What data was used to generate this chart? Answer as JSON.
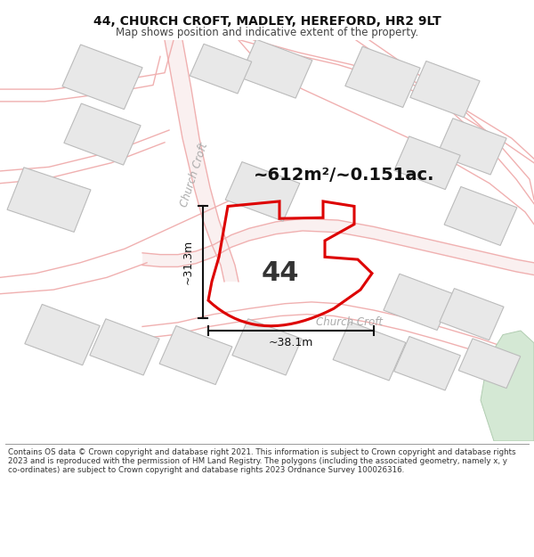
{
  "title": "44, CHURCH CROFT, MADLEY, HEREFORD, HR2 9LT",
  "subtitle": "Map shows position and indicative extent of the property.",
  "area_text": "~612m²/~0.151ac.",
  "label": "44",
  "dim1": "~31.3m",
  "dim2": "~38.1m",
  "street_label_diag": "Church Croft",
  "street_label_horiz": "Church Croft",
  "footer": "Contains OS data © Crown copyright and database right 2021. This information is subject to Crown copyright and database rights 2023 and is reproduced with the permission of HM Land Registry. The polygons (including the associated geometry, namely x, y co-ordinates) are subject to Crown copyright and database rights 2023 Ordnance Survey 100026316.",
  "bg_color": "#ffffff",
  "map_bg": "#f8f8f8",
  "road_color": "#f0b0b0",
  "road_fill": "#f9f0f0",
  "building_fill": "#e8e8e8",
  "building_edge": "#bbbbbb",
  "highlight_fill": "none",
  "highlight_edge": "#dd0000",
  "green_fill": "#d4e8d4",
  "green_edge": "#b0ccb0",
  "text_color": "#333333",
  "dim_color": "#111111",
  "street_color": "#aaaaaa"
}
